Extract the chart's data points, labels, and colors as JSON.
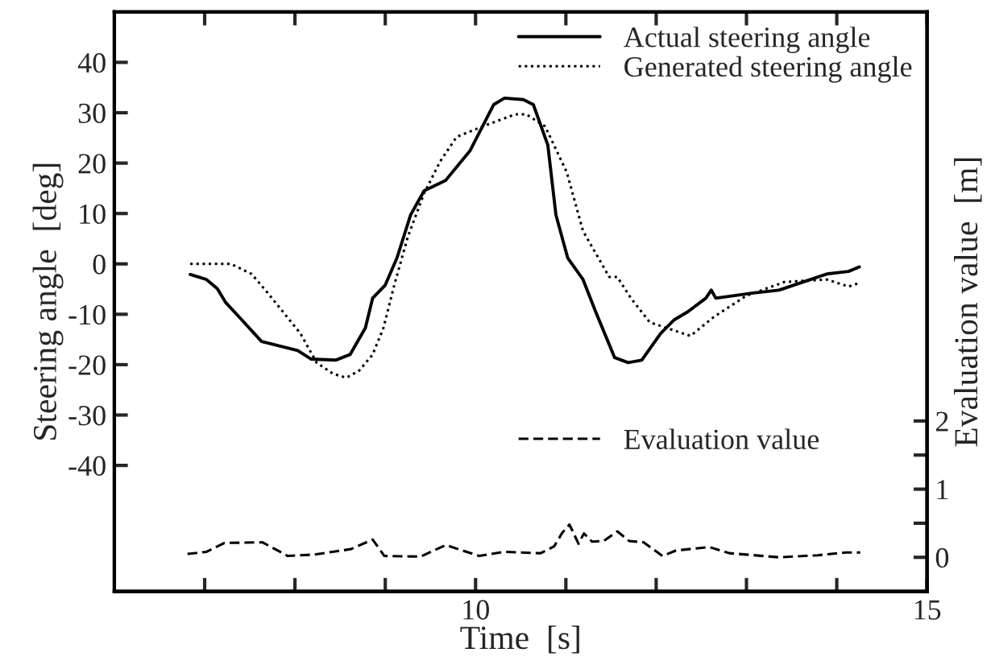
{
  "chart_data": {
    "type": "line",
    "xlabel": "Time  [s]",
    "ylabel": "Steering angle  [deg]",
    "y2label": "Evaluation value  [m]",
    "xlim": [
      6,
      15
    ],
    "xticks": [
      {
        "value": 7,
        "label": null
      },
      {
        "value": 8,
        "label": null
      },
      {
        "value": 9,
        "label": null
      },
      10,
      {
        "value": 11,
        "label": null
      },
      {
        "value": 12,
        "label": null
      },
      {
        "value": 13,
        "label": null
      },
      {
        "value": 14,
        "label": null
      },
      15
    ],
    "ylim": [
      -65,
      50
    ],
    "yticks": [
      -40,
      -30,
      -20,
      -10,
      0,
      10,
      20,
      30,
      40
    ],
    "y2lim": [
      -0.5,
      8
    ],
    "y2ticks": [
      0,
      {
        "value": 0.5,
        "label": null
      },
      1,
      {
        "value": 1.5,
        "label": null
      },
      2
    ],
    "legend": "top right",
    "series": [
      {
        "name": "Actual steering angle",
        "color": "#000000",
        "line_style": "solid",
        "x": [
          6.84,
          7.02,
          7.14,
          7.23,
          7.38,
          7.63,
          8.03,
          8.18,
          8.45,
          8.61,
          8.78,
          8.86,
          9.0,
          9.13,
          9.28,
          9.43,
          9.67,
          9.94,
          10.2,
          10.32,
          10.53,
          10.64,
          10.8,
          10.89,
          11.02,
          11.19,
          11.33,
          11.54,
          11.69,
          11.84,
          12.05,
          12.2,
          12.35,
          12.55,
          12.61,
          12.66,
          13.06,
          13.36,
          13.89,
          14.13,
          14.25
        ],
        "values": [
          -2.1,
          -3.1,
          -4.9,
          -7.6,
          -10.5,
          -15.4,
          -17.2,
          -18.9,
          -19.1,
          -18,
          -12.7,
          -6.8,
          -4.2,
          1.2,
          9.7,
          14.5,
          16.6,
          22.5,
          31.6,
          32.9,
          32.6,
          31.6,
          23.6,
          9.7,
          1.2,
          -3.1,
          -9.5,
          -18.6,
          -19.6,
          -19.1,
          -13.8,
          -11.1,
          -9.5,
          -6.8,
          -5.2,
          -6.8,
          -5.8,
          -5.2,
          -2,
          -1.5,
          -0.6
        ]
      },
      {
        "name": "Generated steering angle",
        "color": "#000000",
        "line_style": "dotted",
        "x": [
          6.84,
          7.29,
          7.52,
          7.7,
          8.06,
          8.24,
          8.42,
          8.57,
          8.71,
          8.86,
          8.98,
          9.1,
          9.25,
          9.43,
          9.61,
          9.79,
          10.08,
          10.44,
          10.56,
          10.77,
          11.01,
          11.19,
          11.36,
          11.48,
          11.57,
          11.72,
          11.93,
          12.38,
          12.64,
          13.0,
          13.42,
          13.89,
          14.13,
          14.25
        ],
        "values": [
          0,
          0,
          -2,
          -5.8,
          -13.8,
          -19.6,
          -21.8,
          -22.6,
          -21.2,
          -18,
          -12.7,
          -4.2,
          5.4,
          14,
          20.4,
          25.2,
          27.3,
          29.7,
          29.7,
          27.3,
          18.2,
          6.5,
          1.2,
          -2.6,
          -2.6,
          -6.8,
          -11.6,
          -14.3,
          -10.5,
          -6.3,
          -3.6,
          -3.1,
          -4.5,
          -3.8
        ]
      },
      {
        "name": "Evaluation value",
        "color": "#000000",
        "line_style": "dashed",
        "axis": "y2",
        "x": [
          6.81,
          7.02,
          7.22,
          7.64,
          7.92,
          8.22,
          8.62,
          8.86,
          8.99,
          9.39,
          9.67,
          10.04,
          10.32,
          10.72,
          10.87,
          10.96,
          11.04,
          11.14,
          11.2,
          11.29,
          11.42,
          11.57,
          11.7,
          11.86,
          12.07,
          12.22,
          12.59,
          12.81,
          13.36,
          13.79,
          14.1,
          14.26
        ],
        "values": [
          0.05,
          0.08,
          0.21,
          0.22,
          0.02,
          0.04,
          0.12,
          0.26,
          0.02,
          0.01,
          0.18,
          0.02,
          0.08,
          0.06,
          0.16,
          0.36,
          0.48,
          0.2,
          0.35,
          0.23,
          0.24,
          0.38,
          0.24,
          0.22,
          0.02,
          0.1,
          0.15,
          0.06,
          0,
          0.03,
          0.07,
          0.07
        ]
      }
    ]
  }
}
